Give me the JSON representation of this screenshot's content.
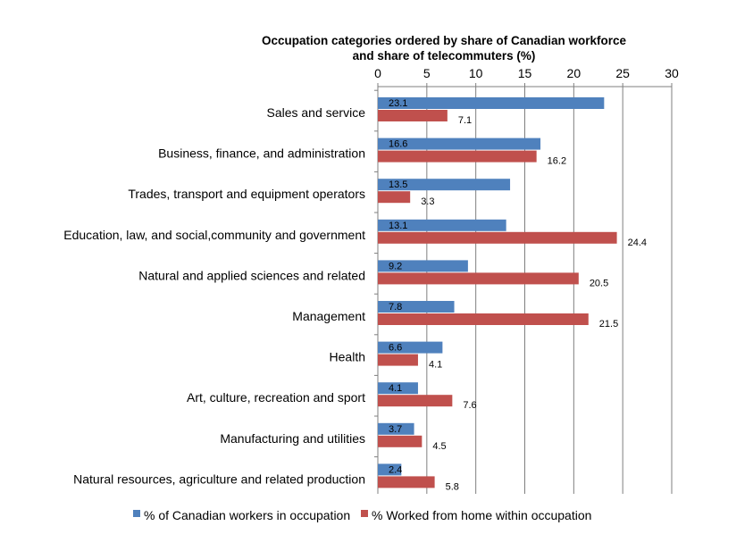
{
  "chart_data": {
    "type": "bar",
    "orientation": "horizontal",
    "title": "Occupation categories ordered by share of Canadian workforce and share of telecommuters (%)",
    "title_lines": [
      "Occupation categories ordered by share of Canadian workforce",
      "and share of telecommuters (%)"
    ],
    "xlabel": "",
    "ylabel": "",
    "xlim": [
      0,
      30
    ],
    "x_ticks": [
      0,
      5,
      10,
      15,
      20,
      25,
      30
    ],
    "x_tick_labels": [
      "0",
      "5",
      "10",
      "15",
      "20",
      "25",
      "30"
    ],
    "axis_position": "top",
    "grid": true,
    "legend_position": "bottom",
    "categories": [
      "Sales and service",
      "Business, finance, and administration",
      "Trades, transport and equipment operators",
      "Education, law, and social,community and government",
      "Natural and applied sciences and related",
      "Management",
      "Health",
      "Art, culture, recreation and sport",
      "Manufacturing and utilities",
      "Natural resources, agriculture and related production"
    ],
    "series": [
      {
        "name": "% of Canadian workers in occupation",
        "color": "#4f81bd",
        "values": [
          23.1,
          16.6,
          13.5,
          13.1,
          9.2,
          7.8,
          6.6,
          4.1,
          3.7,
          2.4
        ],
        "labels": [
          "23.1",
          "16.6",
          "13.5",
          "13.1",
          "9.2",
          "7.8",
          "6.6",
          "4.1",
          "3.7",
          "2.4"
        ]
      },
      {
        "name": "% Worked from home within occupation",
        "color": "#c0504d",
        "values": [
          7.1,
          16.2,
          3.3,
          24.4,
          20.5,
          21.5,
          4.1,
          7.6,
          4.5,
          5.8
        ],
        "labels": [
          "7.1",
          "16.2",
          "3.3",
          "24.4",
          "20.5",
          "21.5",
          "4.1",
          "7.6",
          "4.5",
          "5.8"
        ]
      }
    ]
  }
}
